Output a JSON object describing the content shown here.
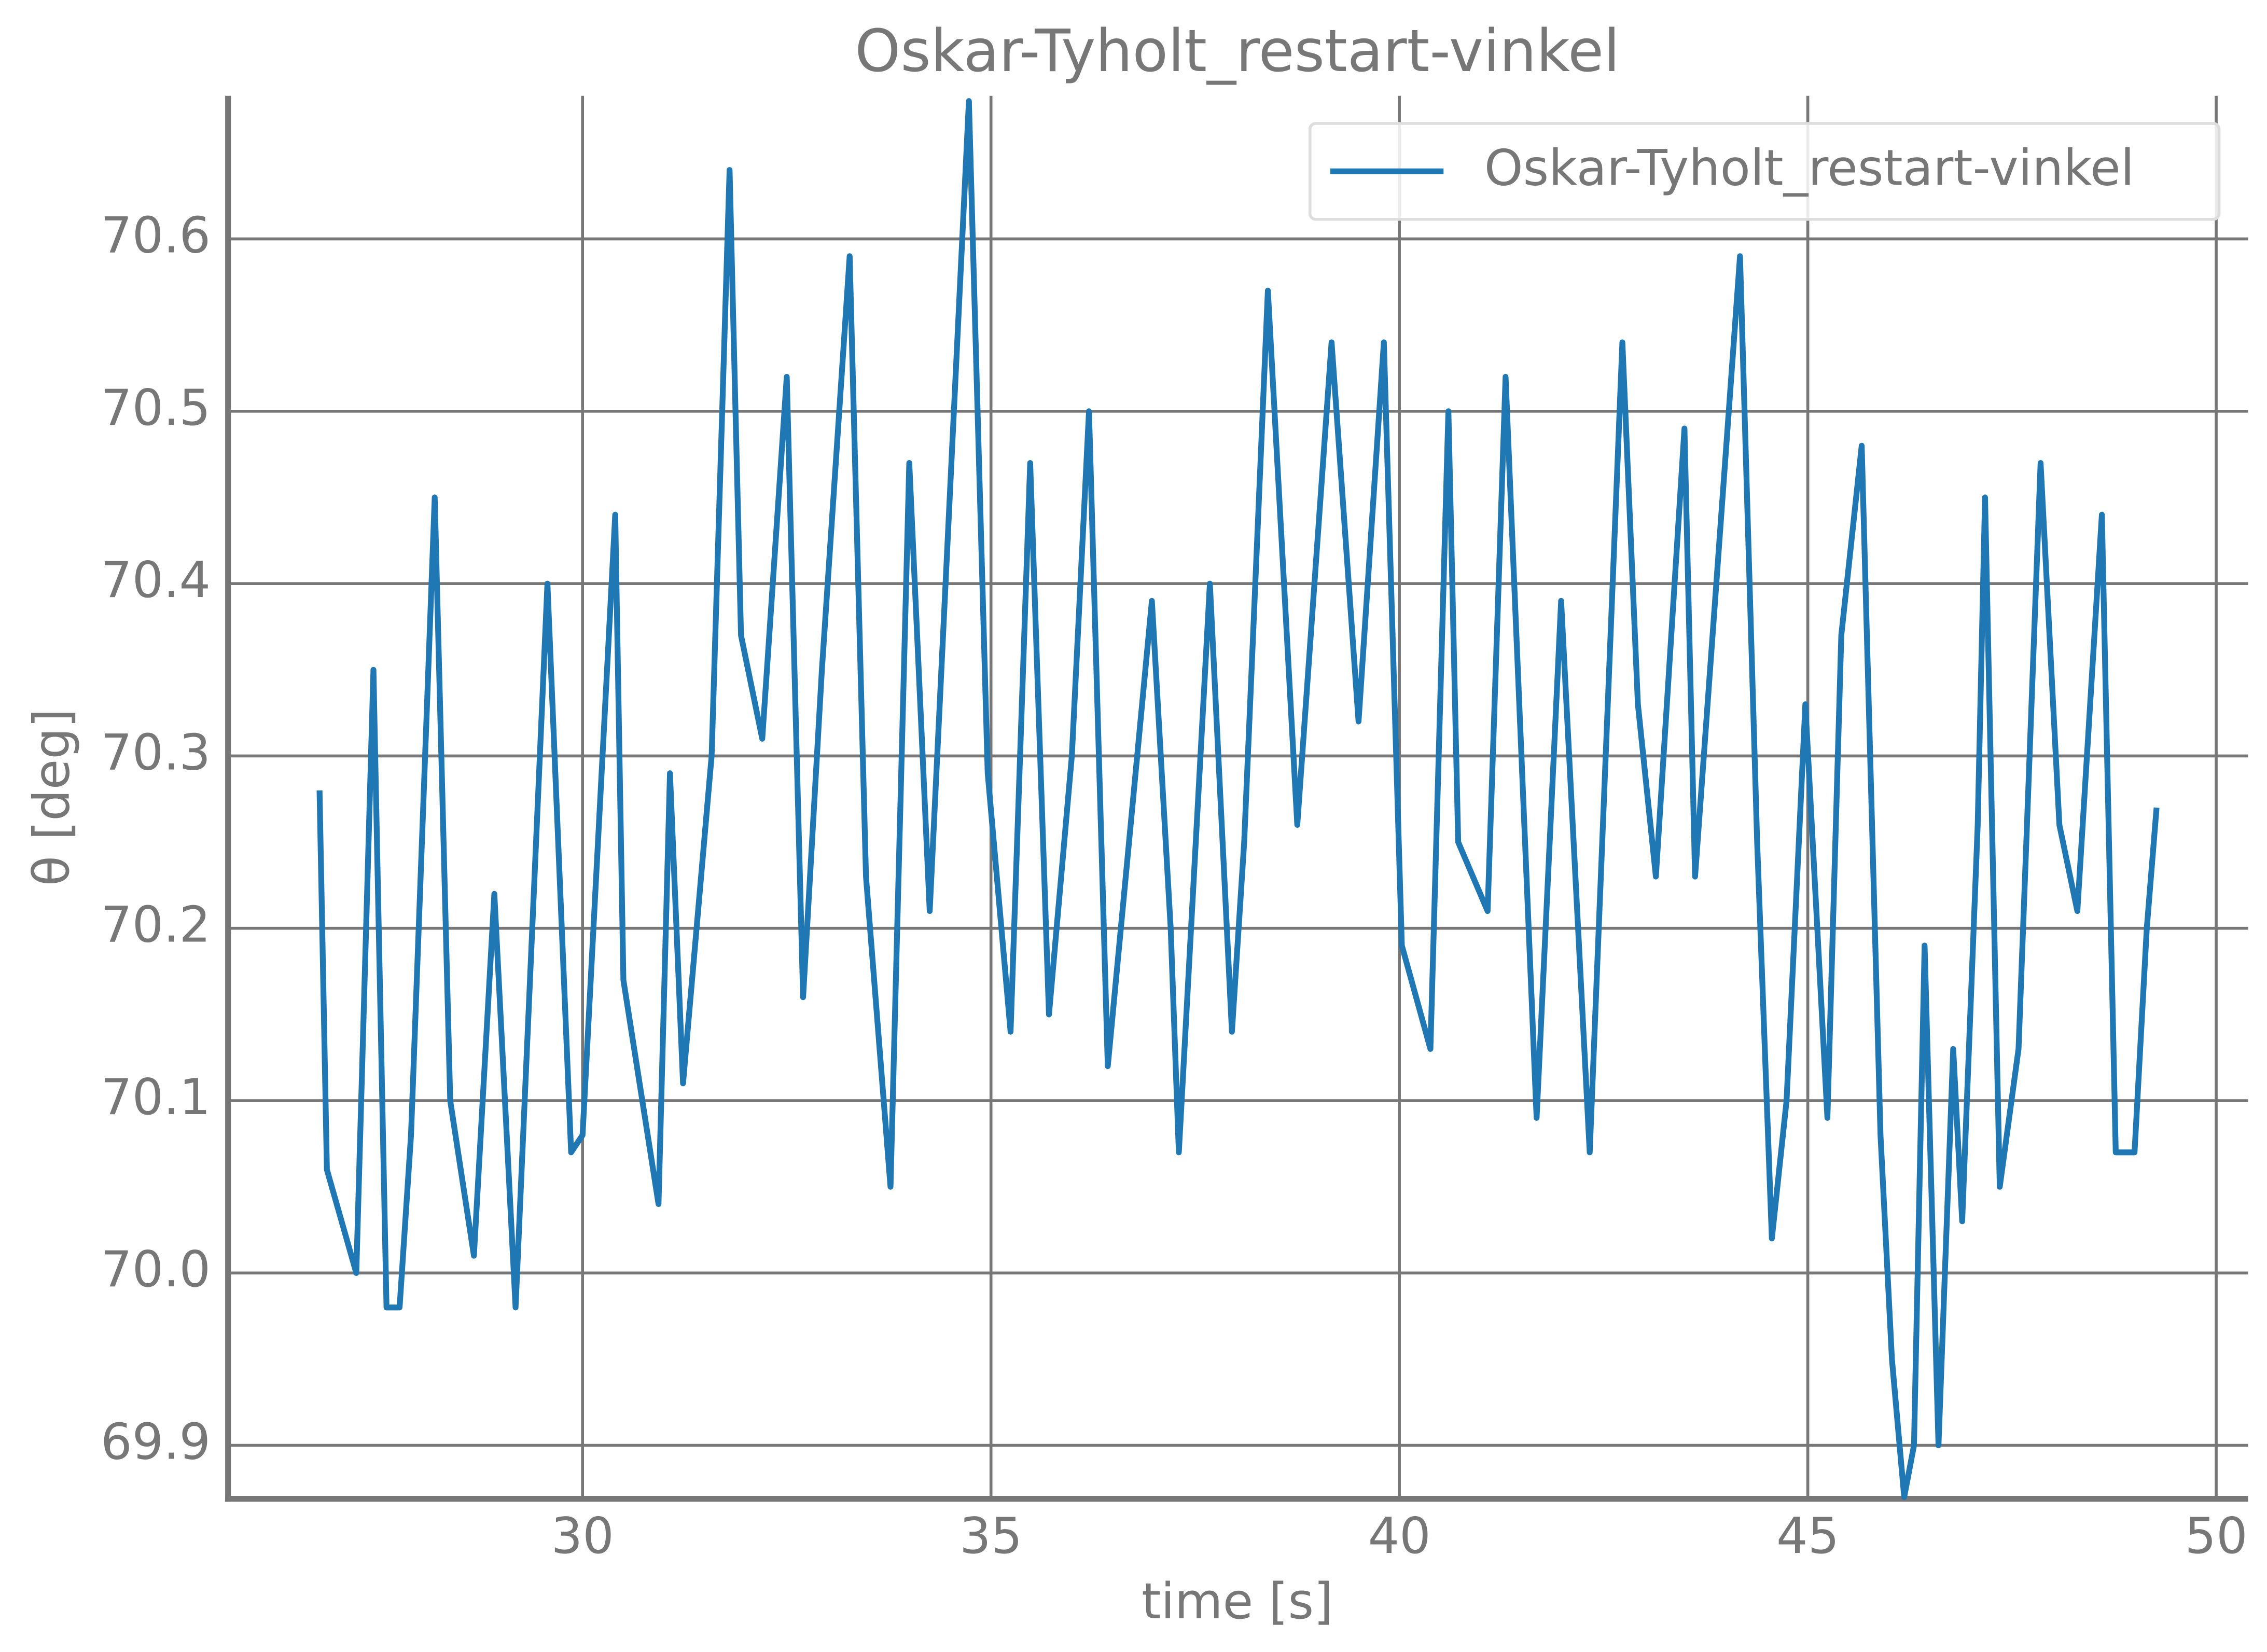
{
  "chart_data": {
    "type": "line",
    "title": "Oskar-Tyholt_restart-vinkel",
    "xlabel": "time [s]",
    "ylabel": "θ [deg]",
    "x": [
      26.78,
      26.87,
      27.23,
      27.44,
      27.6,
      27.76,
      27.9,
      28.19,
      28.38,
      28.67,
      28.92,
      29.18,
      29.57,
      29.86,
      30.0,
      30.4,
      30.5,
      30.93,
      31.07,
      31.23,
      31.58,
      31.8,
      31.94,
      32.2,
      32.5,
      32.7,
      32.93,
      33.27,
      33.47,
      33.77,
      34.0,
      34.25,
      34.73,
      34.96,
      35.24,
      35.48,
      35.71,
      35.99,
      36.2,
      36.43,
      36.97,
      37.2,
      37.3,
      37.68,
      37.95,
      38.1,
      38.39,
      38.75,
      39.17,
      39.5,
      39.81,
      40.03,
      40.38,
      40.6,
      40.72,
      41.08,
      41.3,
      41.68,
      41.98,
      42.33,
      42.73,
      42.92,
      43.14,
      43.49,
      43.62,
      43.88,
      44.17,
      44.38,
      44.56,
      44.74,
      44.97,
      45.24,
      45.41,
      45.66,
      45.89,
      46.03,
      46.18,
      46.3,
      46.43,
      46.6,
      46.78,
      46.89,
      47.08,
      47.17,
      47.35,
      47.58,
      47.85,
      48.08,
      48.3,
      48.6,
      48.77,
      49.0,
      49.15,
      49.27
    ],
    "series": [
      {
        "name": "Oskar-Tyholt_restart-vinkel",
        "color": "#1f77b4",
        "values": [
          70.28,
          70.06,
          70.0,
          70.35,
          69.98,
          69.98,
          70.08,
          70.45,
          70.1,
          70.01,
          70.22,
          69.98,
          70.4,
          70.07,
          70.08,
          70.44,
          70.17,
          70.04,
          70.29,
          70.11,
          70.3,
          70.64,
          70.37,
          70.31,
          70.52,
          70.16,
          70.35,
          70.59,
          70.23,
          70.05,
          70.47,
          70.21,
          70.68,
          70.29,
          70.14,
          70.47,
          70.15,
          70.3,
          70.5,
          70.12,
          70.39,
          70.2,
          70.07,
          70.4,
          70.14,
          70.25,
          70.57,
          70.26,
          70.54,
          70.32,
          70.54,
          70.19,
          70.13,
          70.5,
          70.25,
          70.21,
          70.52,
          70.09,
          70.39,
          70.07,
          70.54,
          70.33,
          70.23,
          70.49,
          70.23,
          70.4,
          70.59,
          70.25,
          70.02,
          70.1,
          70.33,
          70.09,
          70.37,
          70.48,
          70.08,
          69.95,
          69.87,
          69.9,
          70.19,
          69.9,
          70.13,
          70.03,
          70.26,
          70.45,
          70.05,
          70.13,
          70.47,
          70.26,
          70.21,
          70.44,
          70.07,
          70.07,
          70.2,
          70.27
        ]
      }
    ],
    "xlim": [
      25.66,
      50.39
    ],
    "ylim": [
      69.869,
      70.683
    ],
    "xticks": [
      30,
      35,
      40,
      45,
      50
    ],
    "yticks": [
      69.9,
      {
        "value": 70,
        "label": "70.0"
      },
      70.1,
      70.2,
      70.3,
      70.4,
      70.5,
      70.6
    ],
    "grid": true,
    "legend": "upper right"
  }
}
